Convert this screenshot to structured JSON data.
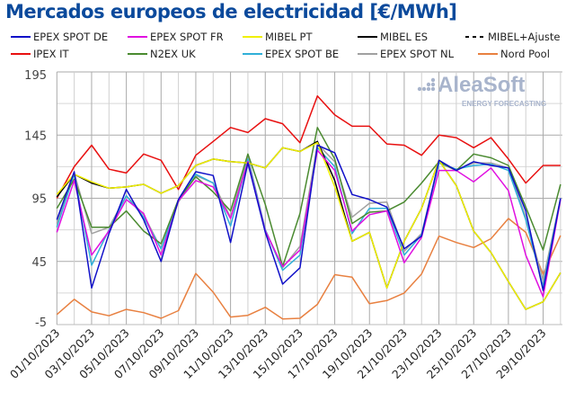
{
  "chart_data": {
    "type": "line",
    "title": "Mercados europeos de electricidad [€/MWh]",
    "watermark": "AleaSoft ENERGY FORECASTING",
    "x": [
      "01/10/2023",
      "02/10/2023",
      "03/10/2023",
      "04/10/2023",
      "05/10/2023",
      "06/10/2023",
      "07/10/2023",
      "08/10/2023",
      "09/10/2023",
      "10/10/2023",
      "11/10/2023",
      "12/10/2023",
      "13/10/2023",
      "14/10/2023",
      "15/10/2023",
      "16/10/2023",
      "17/10/2023",
      "18/10/2023",
      "19/10/2023",
      "20/10/2023",
      "21/10/2023",
      "22/10/2023",
      "23/10/2023",
      "24/10/2023",
      "25/10/2023",
      "26/10/2023",
      "27/10/2023",
      "28/10/2023",
      "29/10/2023",
      "30/10/2023"
    ],
    "x_tick_labels": [
      "01/10/2023",
      "03/10/2023",
      "05/10/2023",
      "07/10/2023",
      "09/10/2023",
      "11/10/2023",
      "13/10/2023",
      "15/10/2023",
      "17/10/2023",
      "19/10/2023",
      "21/10/2023",
      "23/10/2023",
      "25/10/2023",
      "27/10/2023",
      "29/10/2023"
    ],
    "y_ticks": [
      -5,
      45,
      95,
      145,
      195
    ],
    "ylim": [
      -5,
      195
    ],
    "grid": true,
    "legend_position": "top",
    "series": [
      {
        "name": "EPEX SPOT DE",
        "color": "#1010c8",
        "dash": false,
        "values": [
          78,
          116,
          24,
          67,
          102,
          78,
          45,
          94,
          116,
          113,
          60,
          123,
          68,
          27,
          40,
          137,
          131,
          98,
          94,
          88,
          55,
          65,
          125,
          117,
          124,
          121,
          119,
          85,
          22,
          95
        ]
      },
      {
        "name": "EPEX SPOT FR",
        "color": "#e010e0",
        "dash": false,
        "values": [
          68,
          109,
          50,
          69,
          94,
          83,
          50,
          93,
          109,
          104,
          79,
          124,
          69,
          41,
          54,
          133,
          117,
          69,
          82,
          85,
          44,
          64,
          117,
          117,
          108,
          119,
          101,
          50,
          17,
          94
        ]
      },
      {
        "name": "MIBEL PT",
        "color": "#f0f000",
        "dash": false,
        "values": [
          98,
          114,
          108,
          103,
          104,
          106,
          99,
          105,
          121,
          126,
          124,
          123,
          119,
          135,
          132,
          139,
          104,
          61,
          68,
          24,
          61,
          87,
          125,
          105,
          69,
          52,
          29,
          7,
          13,
          36
        ]
      },
      {
        "name": "MIBEL ES",
        "color": "#000000",
        "dash": false,
        "values": [
          96,
          114,
          107,
          103,
          104,
          106,
          99,
          105,
          121,
          126,
          124,
          123,
          119,
          135,
          132,
          140,
          109,
          61,
          68,
          24,
          61,
          87,
          125,
          105,
          69,
          52,
          29,
          7,
          13,
          36
        ]
      },
      {
        "name": "MIBEL+Ajuste",
        "color": "#000000",
        "dash": true,
        "values": [
          96,
          114,
          107,
          103,
          104,
          106,
          99,
          105,
          121,
          126,
          124,
          123,
          119,
          135,
          132,
          140,
          109,
          61,
          68,
          24,
          61,
          87,
          125,
          105,
          69,
          52,
          29,
          7,
          13,
          36
        ]
      },
      {
        "name": "IPEX IT",
        "color": "#e81010",
        "dash": false,
        "values": [
          95,
          120,
          137,
          118,
          115,
          130,
          125,
          102,
          129,
          140,
          151,
          147,
          158,
          154,
          139,
          176,
          161,
          152,
          152,
          138,
          137,
          129,
          145,
          143,
          135,
          143,
          126,
          107,
          121,
          121
        ]
      },
      {
        "name": "N2EX UK",
        "color": "#4a8a30",
        "dash": false,
        "values": [
          87,
          110,
          72,
          72,
          85,
          69,
          59,
          94,
          112,
          100,
          85,
          130,
          90,
          41,
          83,
          151,
          126,
          75,
          84,
          85,
          92,
          107,
          124,
          117,
          130,
          127,
          121,
          88,
          54,
          106
        ]
      },
      {
        "name": "EPEX SPOT BE",
        "color": "#30b0d8",
        "dash": false,
        "values": [
          72,
          114,
          42,
          70,
          97,
          80,
          55,
          93,
          114,
          107,
          73,
          126,
          70,
          38,
          50,
          135,
          120,
          67,
          87,
          87,
          50,
          66,
          123,
          118,
          121,
          122,
          117,
          78,
          25,
          95
        ]
      },
      {
        "name": "EPEX SPOT NL",
        "color": "#a0a0a0",
        "dash": false,
        "values": [
          75,
          115,
          67,
          72,
          97,
          82,
          55,
          92,
          113,
          107,
          80,
          128,
          70,
          40,
          57,
          138,
          124,
          80,
          91,
          92,
          53,
          67,
          123,
          117,
          123,
          123,
          119,
          80,
          30,
          95
        ]
      },
      {
        "name": "Nord Pool",
        "color": "#e88040",
        "dash": false,
        "values": [
          3,
          15,
          5,
          2,
          7,
          4.5,
          0,
          6,
          35.5,
          20.6,
          1,
          2.3,
          8.7,
          -0.5,
          0,
          11,
          34.5,
          32.5,
          11.5,
          14,
          20,
          35,
          65,
          60,
          56,
          63,
          79,
          68,
          35,
          65.5
        ]
      }
    ]
  }
}
